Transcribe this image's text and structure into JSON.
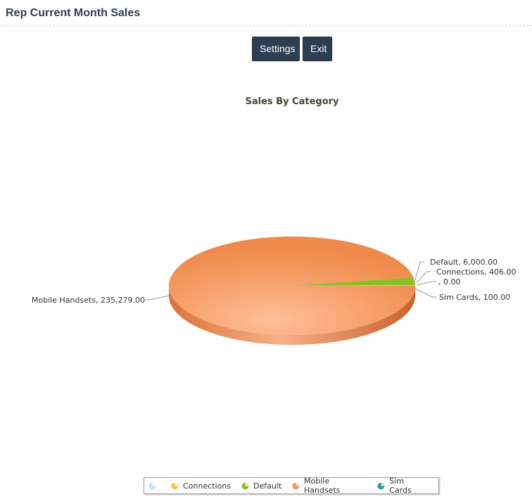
{
  "page": {
    "title": "Rep Current Month Sales"
  },
  "toolbar": {
    "settings_label": "Settings",
    "exit_label": "Exit"
  },
  "chart_data": {
    "type": "pie",
    "title": "Sales By Category",
    "three_d": true,
    "legend_position": "bottom",
    "slices": [
      {
        "name": "",
        "value": 0.0,
        "label": ", 0.00",
        "color": "#c6e3f7"
      },
      {
        "name": "Connections",
        "value": 406.0,
        "label": "Connections, 406.00",
        "color": "#f2c94c"
      },
      {
        "name": "Default",
        "value": 6000.0,
        "label": "Default, 6,000.00",
        "color": "#8cbf26"
      },
      {
        "name": "Mobile Handsets",
        "value": 235279.0,
        "label": "Mobile Handsets, 235,279.00",
        "color": "#f5935a"
      },
      {
        "name": "Sim Cards",
        "value": 100.0,
        "label": "Sim Cards, 100.00",
        "color": "#2aa198"
      }
    ]
  }
}
